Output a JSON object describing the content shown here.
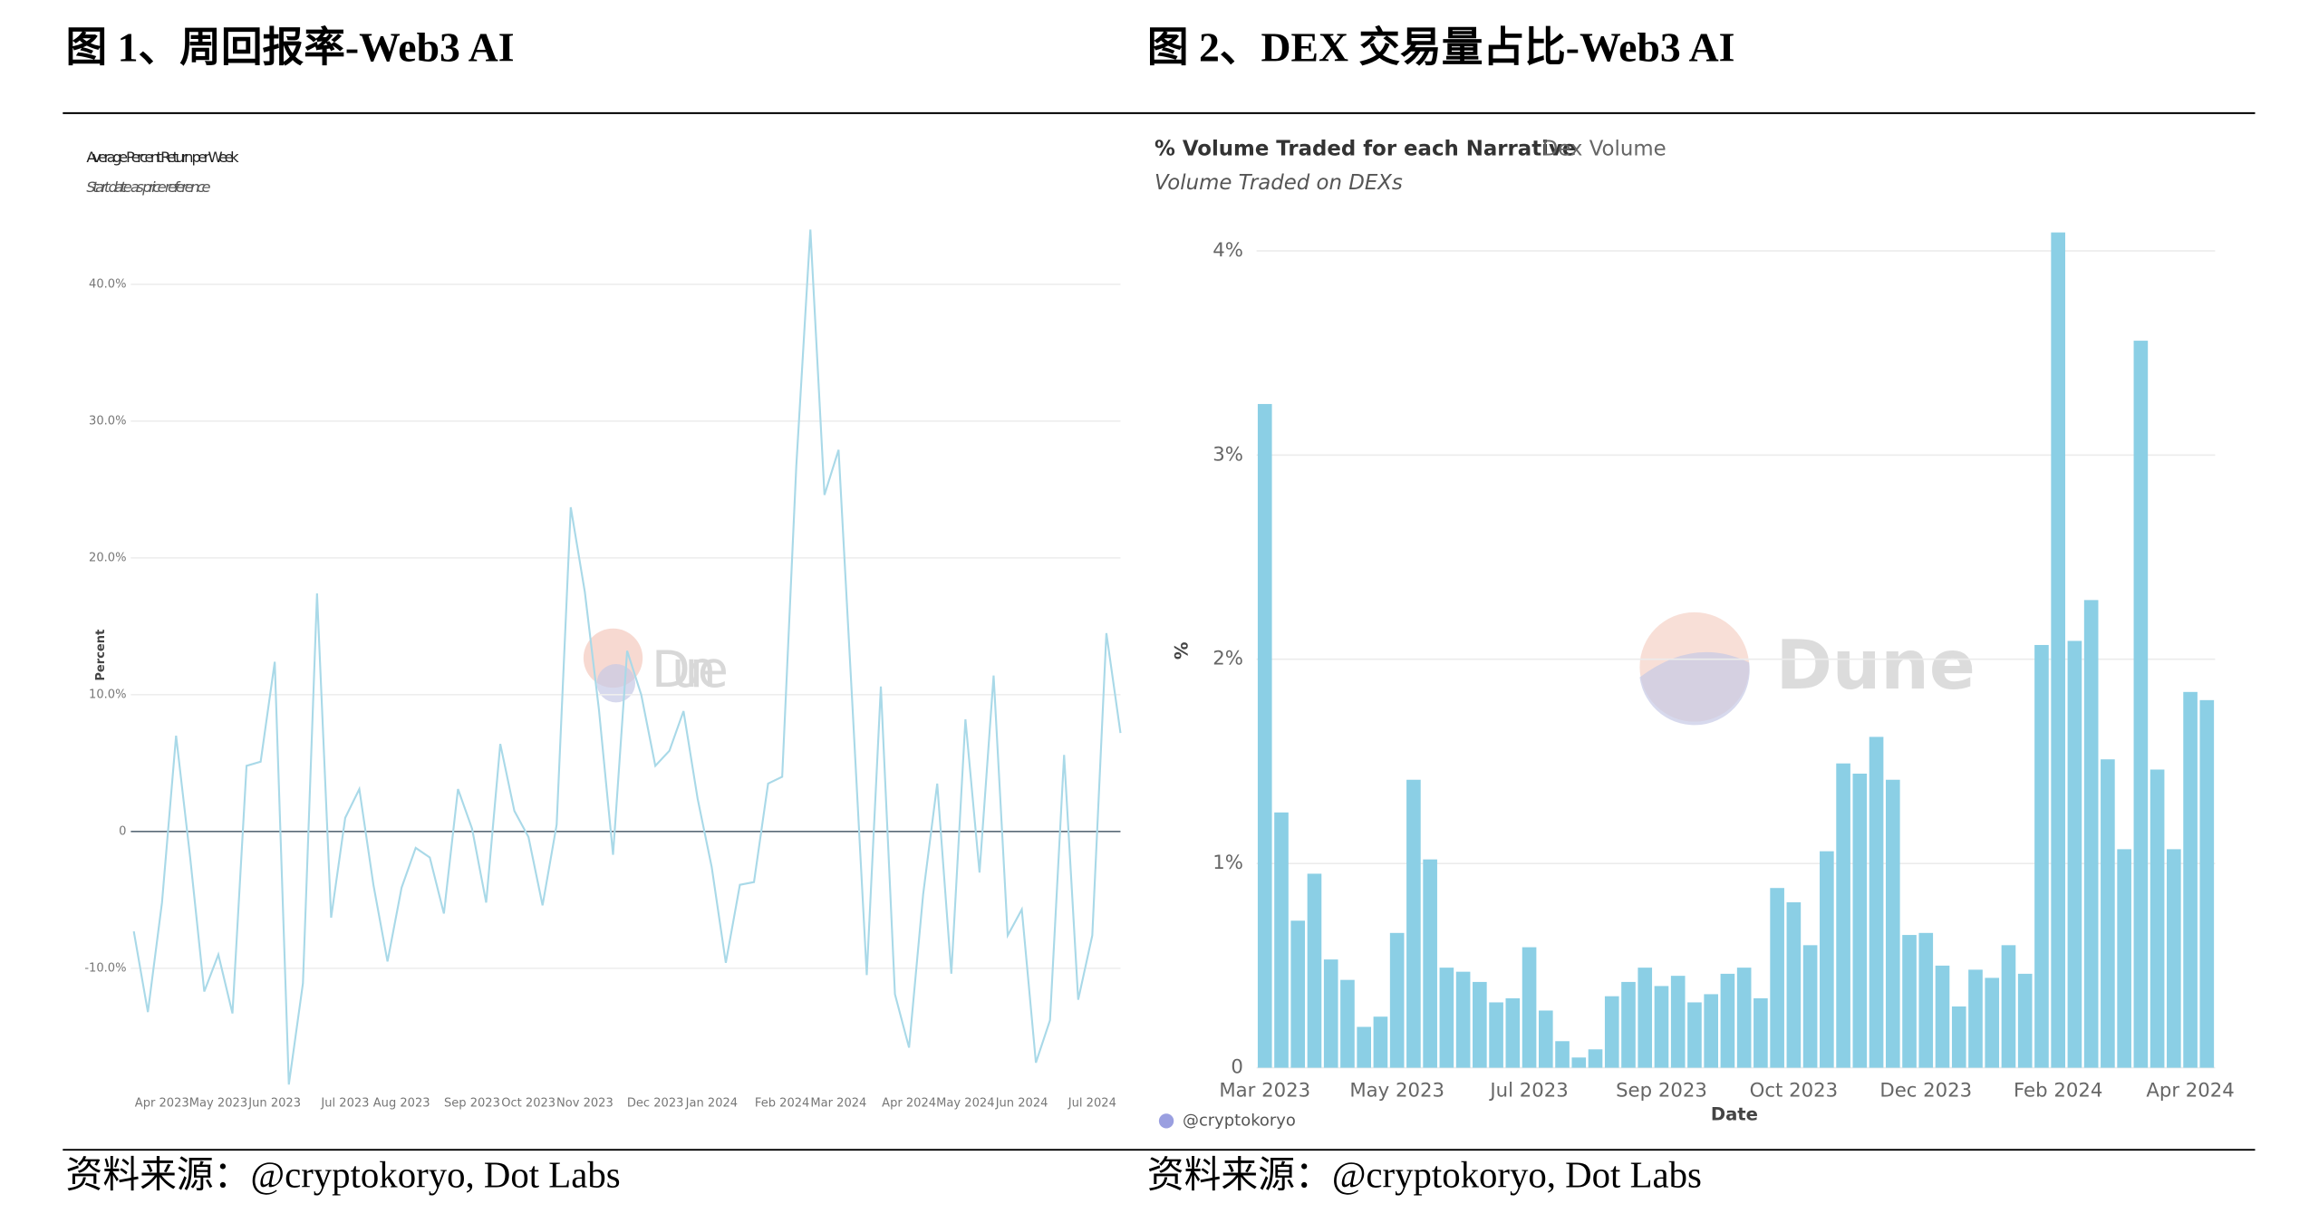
{
  "figures": [
    {
      "caption": "图 1、周回报率-Web3 AI",
      "source": "资料来源：@cryptokoryo, Dot Labs"
    },
    {
      "caption": "图 2、DEX 交易量占比-Web3 AI",
      "source": "资料来源：@cryptokoryo, Dot Labs"
    }
  ],
  "chart_data": [
    {
      "type": "line",
      "title": "Average Percent Return per Week",
      "subtitle": "Start date as price reference",
      "y_label": "Percent",
      "watermark": "Dune",
      "categories": [
        null,
        null,
        "Apr 2023",
        null,
        null,
        null,
        "May 2023",
        null,
        null,
        null,
        "Jun 2023",
        null,
        null,
        null,
        null,
        "Jul 2023",
        null,
        null,
        null,
        "Aug 2023",
        null,
        null,
        null,
        null,
        "Sep 2023",
        null,
        null,
        null,
        "Oct 2023",
        null,
        null,
        null,
        "Nov 2023",
        null,
        null,
        null,
        null,
        "Dec 2023",
        null,
        null,
        null,
        "Jan 2024",
        null,
        null,
        null,
        null,
        "Feb 2024",
        null,
        null,
        null,
        "Mar 2024",
        null,
        null,
        null,
        null,
        "Apr 2024",
        null,
        null,
        null,
        "May 2024",
        null,
        null,
        null,
        "Jun 2024",
        null,
        null,
        null,
        null,
        "Jul 2024",
        null,
        null
      ],
      "series": [
        {
          "name": "Web3 AI",
          "color": "#a9d9e8",
          "values": [
            -7.3,
            -13.2,
            -5.2,
            7.0,
            -1.9,
            -11.7,
            -9,
            -13.3,
            4.8,
            5.1,
            12.4,
            -18.5,
            -11.1,
            17.4,
            -6.3,
            1,
            3.1,
            -3.9,
            -9.5,
            -4.1,
            -1.2,
            -1.9,
            -6,
            3.1,
            0.2,
            -5.2,
            6.4,
            1.5,
            -0.4,
            -5.4,
            0.5,
            23.7,
            17.5,
            8.9,
            -1.7,
            13.2,
            10,
            4.8,
            5.9,
            8.8,
            2.4,
            -2.6,
            -9.6,
            -3.9,
            -3.7,
            3.5,
            4,
            26.7,
            44,
            24.6,
            27.9,
            8.9,
            -10.5,
            10.6,
            -11.9,
            -15.8,
            -4.6,
            3.5,
            -10.4,
            8.2,
            -3,
            11.4,
            -7.6,
            -5.7,
            -16.9,
            -13.8,
            5.6,
            -12.3,
            -7.6,
            14.5,
            7.2
          ]
        }
      ],
      "ylim": [
        -19,
        45
      ],
      "yticks": [
        {
          "value": -10,
          "label": "-10.0%"
        },
        0,
        {
          "value": 10,
          "label": "10.0%"
        },
        {
          "value": 20,
          "label": "20.0%"
        },
        {
          "value": 30,
          "label": "30.0%"
        },
        {
          "value": 40,
          "label": "40.0%"
        }
      ],
      "grid": true
    },
    {
      "type": "bar",
      "title": "% Volume Traded for each Narrative",
      "tab": "Dex Volume",
      "subtitle": "Volume Traded on DEXs",
      "y_label": "%",
      "x_label": "Date",
      "credit": "@cryptokoryo",
      "watermark": "Dune",
      "categories": [
        "Mar 2023",
        null,
        null,
        null,
        null,
        null,
        null,
        null,
        "May 2023",
        null,
        null,
        null,
        null,
        null,
        null,
        null,
        "Jul 2023",
        null,
        null,
        null,
        null,
        null,
        null,
        null,
        "Sep 2023",
        null,
        null,
        null,
        null,
        null,
        null,
        null,
        "Oct 2023",
        null,
        null,
        null,
        null,
        null,
        null,
        null,
        "Dec 2023",
        null,
        null,
        null,
        null,
        null,
        null,
        null,
        "Feb 2024",
        null,
        null,
        null,
        null,
        null,
        null,
        null,
        "Apr 2024",
        null
      ],
      "series": [
        {
          "name": "Web3 AI",
          "color": "#8bcfe5",
          "values": [
            3.25,
            1.25,
            0.72,
            0.95,
            0.53,
            0.43,
            0.2,
            0.25,
            0.66,
            1.41,
            1.02,
            0.49,
            0.47,
            0.42,
            0.32,
            0.34,
            0.59,
            0.28,
            0.13,
            0.05,
            0.09,
            0.35,
            0.42,
            0.49,
            0.4,
            0.45,
            0.32,
            0.36,
            0.46,
            0.49,
            0.34,
            0.88,
            0.81,
            0.6,
            1.06,
            1.49,
            1.44,
            1.62,
            1.41,
            0.65,
            0.66,
            0.5,
            0.3,
            0.48,
            0.44,
            0.6,
            0.46,
            2.07,
            4.09,
            2.09,
            2.29,
            1.51,
            1.07,
            3.56,
            1.46,
            1.07,
            1.84,
            1.8
          ]
        }
      ],
      "ylim": [
        0,
        4.2
      ],
      "yticks": [
        0,
        {
          "value": 1,
          "label": "1%"
        },
        {
          "value": 2,
          "label": "2%"
        },
        {
          "value": 3,
          "label": "3%"
        },
        {
          "value": 4,
          "label": "4%"
        }
      ],
      "grid": true
    }
  ]
}
